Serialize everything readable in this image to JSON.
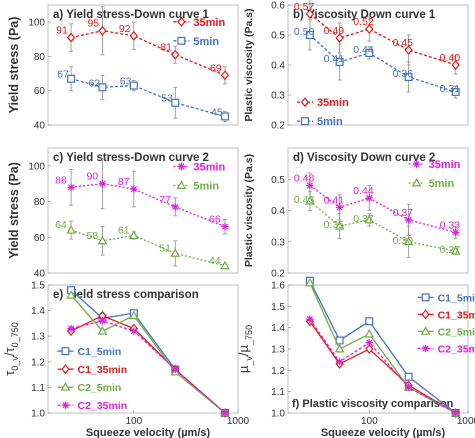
{
  "chart_data": [
    {
      "type": "line",
      "panel": "a",
      "title": "a) Yield stress-Down curve 1",
      "ylabel": "Yield stress (Pa)",
      "xlabel": "",
      "xscale": "log",
      "xlim": [
        15,
        1000
      ],
      "ylim": [
        40,
        110
      ],
      "yticks": [
        40,
        60,
        80,
        100
      ],
      "xticks": [],
      "legend_pos": "top-right",
      "series": [
        {
          "name": "35min",
          "color": "#e31a1c",
          "marker": "diamond",
          "dash": "3,2",
          "legend_color": "#e31a1c",
          "x": [
            25,
            50,
            100,
            250,
            750
          ],
          "y": [
            91,
            95,
            92,
            81,
            69
          ],
          "err": [
            8,
            14,
            8,
            5,
            5
          ],
          "labels": [
            "91",
            "95",
            "92",
            "81",
            "69"
          ]
        },
        {
          "name": "5min",
          "color": "#4472c4",
          "marker": "square",
          "dash": "3,2",
          "legend_color": "#4472c4",
          "x": [
            25,
            50,
            100,
            250,
            750
          ],
          "y": [
            67,
            62,
            63,
            53,
            45
          ],
          "err": [
            7,
            7,
            3,
            9,
            3
          ],
          "labels": [
            "67",
            "62",
            "63",
            "53",
            "45"
          ]
        }
      ]
    },
    {
      "type": "line",
      "panel": "b",
      "title": "b) Viscosity Down curve 1",
      "ylabel": "Plastic viscosity (Pa.s)",
      "xlabel": "",
      "xscale": "log",
      "xlim": [
        15,
        1000
      ],
      "ylim": [
        0.2,
        0.6
      ],
      "yticks": [
        0.2,
        0.3,
        0.4,
        0.5,
        0.6
      ],
      "xticks": [],
      "legend_pos": "bottom-left",
      "series": [
        {
          "name": "35min",
          "color": "#e31a1c",
          "marker": "diamond",
          "dash": "3,2",
          "legend_color": "#e31a1c",
          "x": [
            25,
            50,
            100,
            250,
            750
          ],
          "y": [
            0.57,
            0.49,
            0.52,
            0.45,
            0.4
          ],
          "err": [
            0.06,
            0.05,
            0.04,
            0.05,
            0.03
          ],
          "labels": [
            "0.57",
            "0.49",
            "0.52",
            "0.45",
            "0.40"
          ]
        },
        {
          "name": "5min",
          "color": "#4472c4",
          "marker": "square",
          "dash": "3,2",
          "legend_color": "#4472c4",
          "x": [
            25,
            50,
            100,
            250,
            750
          ],
          "y": [
            0.5,
            0.41,
            0.44,
            0.36,
            0.31
          ],
          "err": [
            0.05,
            0.06,
            0.02,
            0.05,
            0.02
          ],
          "labels": [
            "0.50",
            "0.41",
            "0.44",
            "0.36",
            "0.31"
          ]
        }
      ]
    },
    {
      "type": "line",
      "panel": "c",
      "title": "c) Yield stress-Down curve 2",
      "ylabel": "Yield stress (Pa)",
      "xlabel": "",
      "xscale": "log",
      "xlim": [
        15,
        1000
      ],
      "ylim": [
        40,
        110
      ],
      "yticks": [
        40,
        60,
        80,
        100
      ],
      "xticks": [],
      "legend_pos": "top-right",
      "series": [
        {
          "name": "35min",
          "color": "#e020e0",
          "marker": "star",
          "dash": "2,2",
          "legend_color": "#e020e0",
          "x": [
            25,
            50,
            100,
            250,
            750
          ],
          "y": [
            88,
            90,
            87,
            77,
            66
          ],
          "err": [
            10,
            14,
            10,
            5,
            4
          ],
          "labels": [
            "88",
            "90",
            "87",
            "77",
            "66"
          ]
        },
        {
          "name": "5min",
          "color": "#70ad47",
          "marker": "triangle",
          "dash": "2,2",
          "legend_color": "#70ad47",
          "x": [
            25,
            50,
            100,
            250,
            750
          ],
          "y": [
            64,
            58,
            61,
            51,
            44
          ],
          "err": [
            5,
            8,
            2,
            7,
            1
          ],
          "labels": [
            "64",
            "58",
            "61",
            "51",
            "44"
          ]
        }
      ]
    },
    {
      "type": "line",
      "panel": "d",
      "title": "d) Viscosity Down curve 2",
      "ylabel": "Plastic viscosity (Pa.s)",
      "xlabel": "",
      "xscale": "log",
      "xlim": [
        15,
        1000
      ],
      "ylim": [
        0.2,
        0.6
      ],
      "yticks": [
        0.2,
        0.3,
        0.4,
        0.5
      ],
      "xticks": [],
      "legend_pos": "top-right",
      "series": [
        {
          "name": "35min",
          "color": "#e020e0",
          "marker": "star",
          "dash": "2,2",
          "legend_color": "#e020e0",
          "x": [
            25,
            50,
            100,
            250,
            750
          ],
          "y": [
            0.48,
            0.41,
            0.44,
            0.37,
            0.33
          ],
          "err": [
            0.04,
            0.04,
            0.04,
            0.05,
            0.02
          ],
          "labels": [
            "0.48",
            "0.41",
            "0.44",
            "0.37",
            "0.33"
          ]
        },
        {
          "name": "5min",
          "color": "#70ad47",
          "marker": "triangle",
          "dash": "2,2",
          "legend_color": "#70ad47",
          "x": [
            25,
            50,
            100,
            250,
            750
          ],
          "y": [
            0.43,
            0.35,
            0.37,
            0.3,
            0.27
          ],
          "err": [
            0.03,
            0.04,
            0.02,
            0.05,
            0.01
          ],
          "labels": [
            "0.43",
            "0.35",
            "0.37",
            "0.30",
            "0.27"
          ]
        }
      ]
    },
    {
      "type": "line",
      "panel": "e",
      "title": "e) Yield stress comparison",
      "ylabel": "τ0_v/τ0_750",
      "xlabel": "Squeeze velocity (µm/s)",
      "xscale": "log",
      "xlim": [
        15,
        1000
      ],
      "ylim": [
        1.0,
        1.5
      ],
      "yticks": [
        1.0,
        1.1,
        1.2,
        1.3,
        1.4,
        1.5
      ],
      "xticks": [
        100,
        1000
      ],
      "legend_pos": "bottom-left",
      "series": [
        {
          "name": "C1_5min",
          "color": "#4472c4",
          "marker": "square",
          "dash": "",
          "legend_color": "#4472c4",
          "x": [
            25,
            50,
            100,
            250,
            750
          ],
          "y": [
            1.48,
            1.37,
            1.39,
            1.17,
            1.0
          ]
        },
        {
          "name": "C1_35min",
          "color": "#e31a1c",
          "marker": "diamond",
          "dash": "",
          "legend_color": "#e31a1c",
          "x": [
            25,
            50,
            100,
            250,
            750
          ],
          "y": [
            1.32,
            1.38,
            1.33,
            1.17,
            1.0
          ]
        },
        {
          "name": "C2_5min",
          "color": "#70ad47",
          "marker": "triangle",
          "dash": "",
          "legend_color": "#70ad47",
          "x": [
            25,
            50,
            100,
            250,
            750
          ],
          "y": [
            1.46,
            1.32,
            1.38,
            1.16,
            1.0
          ]
        },
        {
          "name": "C2_35min",
          "color": "#e020e0",
          "marker": "star",
          "dash": "3,2",
          "legend_color": "#e020e0",
          "x": [
            25,
            50,
            100,
            250,
            750
          ],
          "y": [
            1.33,
            1.36,
            1.32,
            1.17,
            1.0
          ]
        }
      ]
    },
    {
      "type": "line",
      "panel": "f",
      "title": "f) Plastic viscosity comparison",
      "ylabel": "µ_v/µ_750",
      "xlabel": "Squeeze velocity (µm/s)",
      "xscale": "log",
      "xlim": [
        15,
        1000
      ],
      "ylim": [
        1.0,
        1.6
      ],
      "yticks": [
        1.0,
        1.1,
        1.2,
        1.3,
        1.4,
        1.5,
        1.6
      ],
      "xticks": [
        100,
        1000
      ],
      "legend_pos": "top-right",
      "series": [
        {
          "name": "C1_5min",
          "color": "#4472c4",
          "marker": "square",
          "dash": "",
          "legend_color": "#4472c4",
          "x": [
            25,
            50,
            100,
            250,
            750
          ],
          "y": [
            1.62,
            1.34,
            1.43,
            1.17,
            1.0
          ]
        },
        {
          "name": "C1_35min",
          "color": "#e31a1c",
          "marker": "diamond",
          "dash": "",
          "legend_color": "#e31a1c",
          "x": [
            25,
            50,
            100,
            250,
            750
          ],
          "y": [
            1.43,
            1.23,
            1.3,
            1.13,
            1.0
          ]
        },
        {
          "name": "C2_5min",
          "color": "#70ad47",
          "marker": "triangle",
          "dash": "",
          "legend_color": "#70ad47",
          "x": [
            25,
            50,
            100,
            250,
            750
          ],
          "y": [
            1.61,
            1.3,
            1.37,
            1.12,
            1.0
          ]
        },
        {
          "name": "C2_35min",
          "color": "#e020e0",
          "marker": "star",
          "dash": "3,2",
          "legend_color": "#e020e0",
          "x": [
            25,
            50,
            100,
            250,
            750
          ],
          "y": [
            1.44,
            1.24,
            1.33,
            1.12,
            1.0
          ]
        }
      ]
    }
  ]
}
